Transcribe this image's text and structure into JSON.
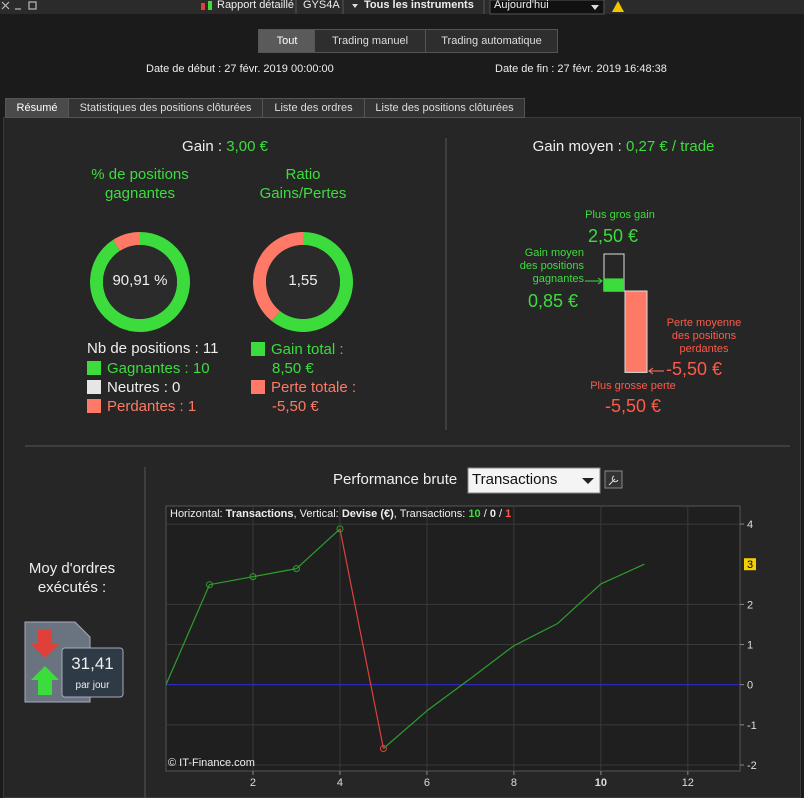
{
  "toolbar": {
    "report": "Rapport détaillé",
    "instrument": "GYS4A",
    "scope": "Tous les instruments",
    "period": "Aujourd'hui"
  },
  "filters": [
    "Tout",
    "Trading manuel",
    "Trading automatique"
  ],
  "dates": {
    "start_label": "Date de début :",
    "start": "27 févr. 2019 00:00:00",
    "end_label": "Date de fin :",
    "end": "27 févr. 2019 16:48:38"
  },
  "tabs": [
    "Résumé",
    "Statistiques des positions clôturées",
    "Liste des ordres",
    "Liste des positions clôturées"
  ],
  "summary": {
    "gain_label": "Gain :",
    "gain": "3,00 €",
    "win_rate": {
      "title": "% de positions gagnantes",
      "value": "90,91 %"
    },
    "ratio": {
      "title": "Ratio Gains/Pertes",
      "value": "1,55"
    },
    "positions_label": "Nb de positions :",
    "positions": 11,
    "counts": [
      {
        "name": "Gagnantes :",
        "value": 10,
        "color": "#3ddc3d"
      },
      {
        "name": "Neutres :",
        "value": 0,
        "color": "#e6e6e6"
      },
      {
        "name": "Perdantes :",
        "value": 1,
        "color": "#ff7a66"
      }
    ],
    "totals": [
      {
        "name": "Gain total :",
        "value": 8.5,
        "label": "8,50 €",
        "color": "#3ddc3d"
      },
      {
        "name": "Perte totale :",
        "value": -5.5,
        "label": "-5,50 €",
        "color": "#ff7a66"
      }
    ]
  },
  "average": {
    "title_label": "Gain moyen :",
    "title_value": "0,27 € / trade",
    "bars": [
      {
        "name": "Plus gros gain",
        "value": 2.5,
        "label": "2,50 €"
      },
      {
        "name": "Gain moyen des positions gagnantes",
        "value": 0.85,
        "label": "0,85 €"
      },
      {
        "name": "Perte moyenne des positions perdantes",
        "value": -5.5,
        "label": "-5,50 €"
      },
      {
        "name": "Plus grosse perte",
        "value": -5.5,
        "label": "-5,50 €"
      }
    ]
  },
  "orders": {
    "title": "Moy d'ordres exécutés :",
    "value": "31,41",
    "unit": "par jour"
  },
  "chart_data": {
    "type": "line",
    "title": "Performance brute",
    "selector": "Transactions",
    "header": [
      "Horizontal:",
      "Transactions",
      ", Vertical:",
      "Devise (€)",
      ", Transactions:"
    ],
    "count_separator": "/",
    "credit": "© IT-Finance.com",
    "x": [
      0,
      1,
      2,
      3,
      4,
      5,
      6,
      7,
      8,
      9,
      10,
      11
    ],
    "values": [
      0,
      2.49,
      2.69,
      2.89,
      3.88,
      -1.59,
      -0.65,
      0.15,
      0.97,
      1.52,
      2.51,
      3
    ],
    "up_color": "#2e9e2e",
    "down_color": "#e0403a",
    "baseline_color": "#2828d0",
    "xlim": [
      0,
      13.2
    ],
    "ylim": [
      -2.15,
      4.45
    ],
    "xticks": [
      2,
      4,
      6,
      8,
      10,
      12
    ],
    "yticks": [
      -2,
      -1,
      0,
      1,
      2,
      4
    ],
    "grid": true
  }
}
